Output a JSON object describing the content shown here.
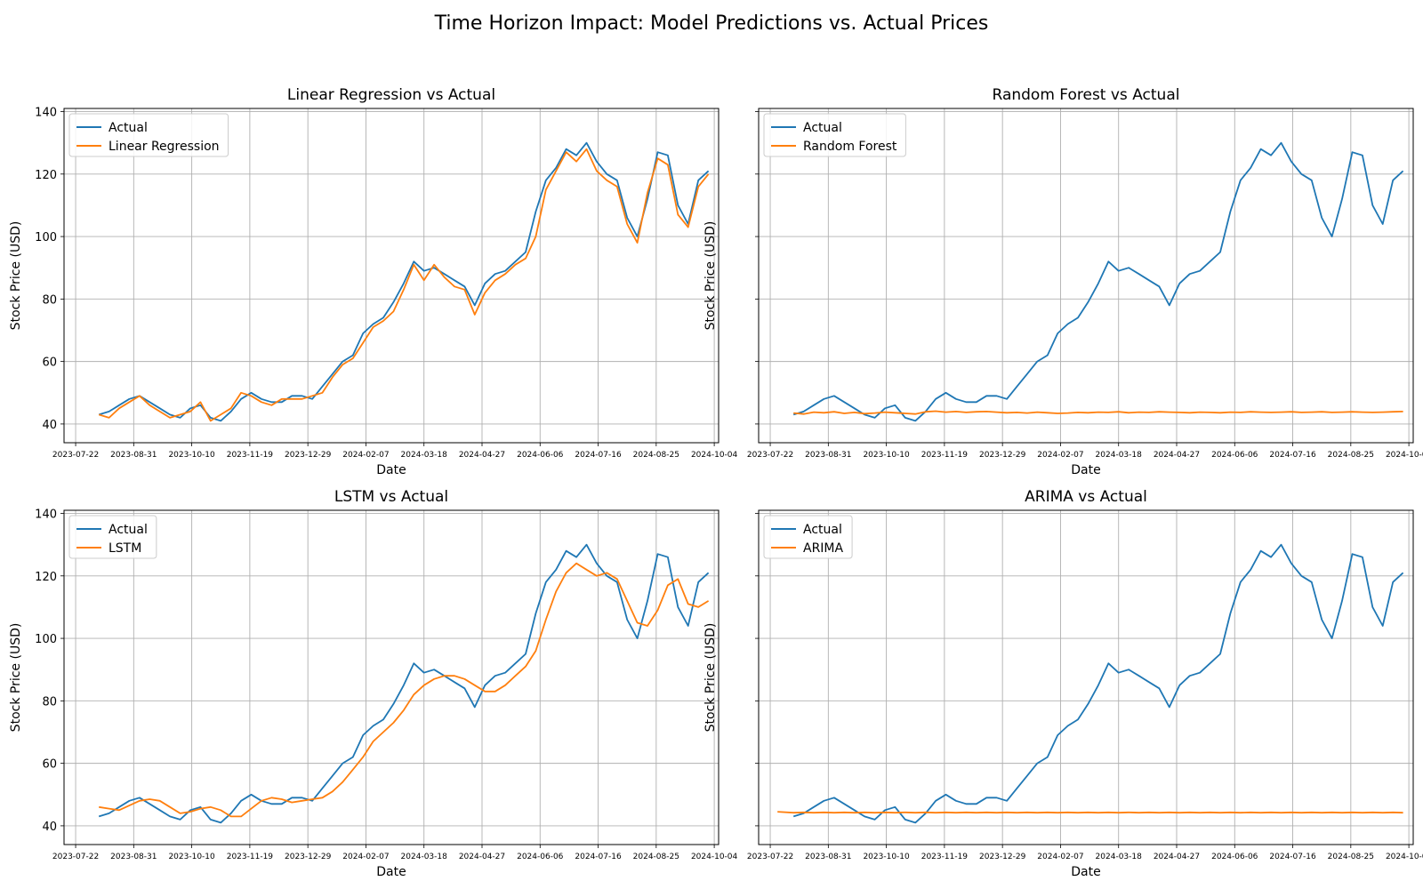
{
  "figure": {
    "title": "Time Horizon Impact: Model Predictions vs. Actual Prices"
  },
  "x_ticks": [
    "2023-07-22",
    "2023-08-31",
    "2023-10-10",
    "2023-11-19",
    "2023-12-29",
    "2024-02-07",
    "2024-03-18",
    "2024-04-27",
    "2024-06-06",
    "2024-07-16",
    "2024-08-25",
    "2024-10-04"
  ],
  "colors": {
    "actual": "#1f77b4",
    "model": "#ff7f0e",
    "grid": "#b0b0b0"
  },
  "chart_data": [
    {
      "type": "line",
      "title": "Linear Regression vs Actual",
      "xlabel": "Date",
      "ylabel": "Stock Price (USD)",
      "xlim": [
        "2023-07-14",
        "2024-10-07"
      ],
      "ylim": [
        34,
        141
      ],
      "yticks": [
        40,
        60,
        80,
        100,
        120,
        140
      ],
      "grid": true,
      "legend": "upper-left",
      "x": [
        "2023-08-07",
        "2023-08-14",
        "2023-08-21",
        "2023-08-28",
        "2023-09-04",
        "2023-09-11",
        "2023-09-18",
        "2023-09-25",
        "2023-10-02",
        "2023-10-09",
        "2023-10-16",
        "2023-10-23",
        "2023-10-30",
        "2023-11-06",
        "2023-11-13",
        "2023-11-20",
        "2023-11-27",
        "2023-12-04",
        "2023-12-11",
        "2023-12-18",
        "2023-12-25",
        "2024-01-01",
        "2024-01-08",
        "2024-01-15",
        "2024-01-22",
        "2024-01-29",
        "2024-02-05",
        "2024-02-12",
        "2024-02-19",
        "2024-02-26",
        "2024-03-04",
        "2024-03-11",
        "2024-03-18",
        "2024-03-25",
        "2024-04-01",
        "2024-04-08",
        "2024-04-15",
        "2024-04-22",
        "2024-04-29",
        "2024-05-06",
        "2024-05-13",
        "2024-05-20",
        "2024-05-27",
        "2024-06-03",
        "2024-06-10",
        "2024-06-17",
        "2024-06-24",
        "2024-07-01",
        "2024-07-08",
        "2024-07-15",
        "2024-07-22",
        "2024-07-29",
        "2024-08-05",
        "2024-08-12",
        "2024-08-19",
        "2024-08-26",
        "2024-09-02",
        "2024-09-09",
        "2024-09-16",
        "2024-09-23",
        "2024-09-30"
      ],
      "series": [
        {
          "name": "Actual",
          "values": [
            43,
            44,
            46,
            48,
            49,
            47,
            45,
            43,
            42,
            45,
            46,
            42,
            41,
            44,
            48,
            50,
            48,
            47,
            47,
            49,
            49,
            48,
            52,
            56,
            60,
            62,
            69,
            72,
            74,
            79,
            85,
            92,
            89,
            90,
            88,
            86,
            84,
            78,
            85,
            88,
            89,
            92,
            95,
            108,
            118,
            122,
            128,
            126,
            130,
            124,
            120,
            118,
            106,
            100,
            112,
            127,
            126,
            110,
            104,
            118,
            121
          ]
        },
        {
          "name": "Linear Regression",
          "values": [
            43,
            42,
            45,
            47,
            49,
            46,
            44,
            42,
            43,
            44,
            47,
            41,
            43,
            45,
            50,
            49,
            47,
            46,
            48,
            48,
            48,
            49,
            50,
            55,
            59,
            61,
            66,
            71,
            73,
            76,
            83,
            91,
            86,
            91,
            87,
            84,
            83,
            75,
            82,
            86,
            88,
            91,
            93,
            100,
            115,
            121,
            127,
            124,
            128,
            121,
            118,
            116,
            104,
            98,
            114,
            125,
            123,
            107,
            103,
            116,
            120
          ]
        }
      ]
    },
    {
      "type": "line",
      "title": "Random Forest vs Actual",
      "xlabel": "Date",
      "ylabel": "Stock Price (USD)",
      "xlim": [
        "2023-07-14",
        "2024-10-07"
      ],
      "ylim": [
        34,
        141
      ],
      "yticks": [
        40,
        60,
        80,
        100,
        120,
        140
      ],
      "grid": true,
      "legend": "upper-left",
      "x": [
        "2023-08-07",
        "2023-08-14",
        "2023-08-21",
        "2023-08-28",
        "2023-09-04",
        "2023-09-11",
        "2023-09-18",
        "2023-09-25",
        "2023-10-02",
        "2023-10-09",
        "2023-10-16",
        "2023-10-23",
        "2023-10-30",
        "2023-11-06",
        "2023-11-13",
        "2023-11-20",
        "2023-11-27",
        "2023-12-04",
        "2023-12-11",
        "2023-12-18",
        "2023-12-25",
        "2024-01-01",
        "2024-01-08",
        "2024-01-15",
        "2024-01-22",
        "2024-01-29",
        "2024-02-05",
        "2024-02-12",
        "2024-02-19",
        "2024-02-26",
        "2024-03-04",
        "2024-03-11",
        "2024-03-18",
        "2024-03-25",
        "2024-04-01",
        "2024-04-08",
        "2024-04-15",
        "2024-04-22",
        "2024-04-29",
        "2024-05-06",
        "2024-05-13",
        "2024-05-20",
        "2024-05-27",
        "2024-06-03",
        "2024-06-10",
        "2024-06-17",
        "2024-06-24",
        "2024-07-01",
        "2024-07-08",
        "2024-07-15",
        "2024-07-22",
        "2024-07-29",
        "2024-08-05",
        "2024-08-12",
        "2024-08-19",
        "2024-08-26",
        "2024-09-02",
        "2024-09-09",
        "2024-09-16",
        "2024-09-23",
        "2024-09-30"
      ],
      "series": [
        {
          "name": "Actual",
          "values": [
            43,
            44,
            46,
            48,
            49,
            47,
            45,
            43,
            42,
            45,
            46,
            42,
            41,
            44,
            48,
            50,
            48,
            47,
            47,
            49,
            49,
            48,
            52,
            56,
            60,
            62,
            69,
            72,
            74,
            79,
            85,
            92,
            89,
            90,
            88,
            86,
            84,
            78,
            85,
            88,
            89,
            92,
            95,
            108,
            118,
            122,
            128,
            126,
            130,
            124,
            120,
            118,
            106,
            100,
            112,
            127,
            126,
            110,
            104,
            118,
            121
          ]
        },
        {
          "name": "Random Forest",
          "values": [
            43.5,
            43.2,
            43.8,
            43.6,
            43.9,
            43.4,
            43.7,
            43.3,
            43.5,
            43.8,
            43.6,
            43.4,
            43.2,
            43.9,
            44.1,
            43.8,
            44.0,
            43.7,
            43.9,
            44.0,
            43.8,
            43.6,
            43.7,
            43.5,
            43.8,
            43.6,
            43.4,
            43.5,
            43.7,
            43.6,
            43.8,
            43.7,
            43.9,
            43.6,
            43.8,
            43.7,
            43.9,
            43.8,
            43.7,
            43.6,
            43.8,
            43.7,
            43.6,
            43.8,
            43.7,
            43.9,
            43.8,
            43.7,
            43.8,
            43.9,
            43.7,
            43.8,
            43.9,
            43.7,
            43.8,
            43.9,
            43.8,
            43.7,
            43.8,
            43.9,
            44.0
          ]
        }
      ]
    },
    {
      "type": "line",
      "title": "LSTM vs Actual",
      "xlabel": "Date",
      "ylabel": "Stock Price (USD)",
      "xlim": [
        "2023-07-14",
        "2024-10-07"
      ],
      "ylim": [
        34,
        141
      ],
      "yticks": [
        40,
        60,
        80,
        100,
        120,
        140
      ],
      "grid": true,
      "legend": "upper-left",
      "x": [
        "2023-08-07",
        "2023-08-14",
        "2023-08-21",
        "2023-08-28",
        "2023-09-04",
        "2023-09-11",
        "2023-09-18",
        "2023-09-25",
        "2023-10-02",
        "2023-10-09",
        "2023-10-16",
        "2023-10-23",
        "2023-10-30",
        "2023-11-06",
        "2023-11-13",
        "2023-11-20",
        "2023-11-27",
        "2023-12-04",
        "2023-12-11",
        "2023-12-18",
        "2023-12-25",
        "2024-01-01",
        "2024-01-08",
        "2024-01-15",
        "2024-01-22",
        "2024-01-29",
        "2024-02-05",
        "2024-02-12",
        "2024-02-19",
        "2024-02-26",
        "2024-03-04",
        "2024-03-11",
        "2024-03-18",
        "2024-03-25",
        "2024-04-01",
        "2024-04-08",
        "2024-04-15",
        "2024-04-22",
        "2024-04-29",
        "2024-05-06",
        "2024-05-13",
        "2024-05-20",
        "2024-05-27",
        "2024-06-03",
        "2024-06-10",
        "2024-06-17",
        "2024-06-24",
        "2024-07-01",
        "2024-07-08",
        "2024-07-15",
        "2024-07-22",
        "2024-07-29",
        "2024-08-05",
        "2024-08-12",
        "2024-08-19",
        "2024-08-26",
        "2024-09-02",
        "2024-09-09",
        "2024-09-16",
        "2024-09-23",
        "2024-09-30"
      ],
      "series": [
        {
          "name": "Actual",
          "values": [
            43,
            44,
            46,
            48,
            49,
            47,
            45,
            43,
            42,
            45,
            46,
            42,
            41,
            44,
            48,
            50,
            48,
            47,
            47,
            49,
            49,
            48,
            52,
            56,
            60,
            62,
            69,
            72,
            74,
            79,
            85,
            92,
            89,
            90,
            88,
            86,
            84,
            78,
            85,
            88,
            89,
            92,
            95,
            108,
            118,
            122,
            128,
            126,
            130,
            124,
            120,
            118,
            106,
            100,
            112,
            127,
            126,
            110,
            104,
            118,
            121
          ]
        },
        {
          "name": "LSTM",
          "values": [
            46,
            45.5,
            45,
            46.5,
            48,
            48.5,
            48,
            46,
            44,
            44.5,
            45.5,
            46,
            45,
            43,
            43,
            45.5,
            48,
            49,
            48.5,
            47.5,
            48,
            48.5,
            49,
            51,
            54,
            58,
            62,
            67,
            70,
            73,
            77,
            82,
            85,
            87,
            88,
            88,
            87,
            85,
            83,
            83,
            85,
            88,
            91,
            96,
            106,
            115,
            121,
            124,
            122,
            120,
            121,
            119,
            112,
            105,
            104,
            109,
            117,
            119,
            111,
            110,
            112
          ]
        }
      ]
    },
    {
      "type": "line",
      "title": "ARIMA vs Actual",
      "xlabel": "Date",
      "ylabel": "Stock Price (USD)",
      "xlim": [
        "2023-07-14",
        "2024-10-07"
      ],
      "ylim": [
        34,
        141
      ],
      "yticks": [
        40,
        60,
        80,
        100,
        120,
        140
      ],
      "grid": true,
      "legend": "upper-left",
      "x": [
        "2023-07-27",
        "2023-08-07",
        "2023-08-14",
        "2023-08-21",
        "2023-08-28",
        "2023-09-04",
        "2023-09-11",
        "2023-09-18",
        "2023-09-25",
        "2023-10-02",
        "2023-10-09",
        "2023-10-16",
        "2023-10-23",
        "2023-10-30",
        "2023-11-06",
        "2023-11-13",
        "2023-11-20",
        "2023-11-27",
        "2023-12-04",
        "2023-12-11",
        "2023-12-18",
        "2023-12-25",
        "2024-01-01",
        "2024-01-08",
        "2024-01-15",
        "2024-01-22",
        "2024-01-29",
        "2024-02-05",
        "2024-02-12",
        "2024-02-19",
        "2024-02-26",
        "2024-03-04",
        "2024-03-11",
        "2024-03-18",
        "2024-03-25",
        "2024-04-01",
        "2024-04-08",
        "2024-04-15",
        "2024-04-22",
        "2024-04-29",
        "2024-05-06",
        "2024-05-13",
        "2024-05-20",
        "2024-05-27",
        "2024-06-03",
        "2024-06-10",
        "2024-06-17",
        "2024-06-24",
        "2024-07-01",
        "2024-07-08",
        "2024-07-15",
        "2024-07-22",
        "2024-07-29",
        "2024-08-05",
        "2024-08-12",
        "2024-08-19",
        "2024-08-26",
        "2024-09-02",
        "2024-09-09",
        "2024-09-16",
        "2024-09-23",
        "2024-09-30"
      ],
      "series": [
        {
          "name": "Actual",
          "values": [
            null,
            43,
            44,
            46,
            48,
            49,
            47,
            45,
            43,
            42,
            45,
            46,
            42,
            41,
            44,
            48,
            50,
            48,
            47,
            47,
            49,
            49,
            48,
            52,
            56,
            60,
            62,
            69,
            72,
            74,
            79,
            85,
            92,
            89,
            90,
            88,
            86,
            84,
            78,
            85,
            88,
            89,
            92,
            95,
            108,
            118,
            122,
            128,
            126,
            130,
            124,
            120,
            118,
            106,
            100,
            112,
            127,
            126,
            110,
            104,
            118,
            121
          ]
        },
        {
          "name": "ARIMA",
          "values": [
            44.5,
            44.2,
            44.3,
            44.2,
            44.3,
            44.2,
            44.3,
            44.2,
            44.3,
            44.2,
            44.3,
            44.2,
            44.3,
            44.2,
            44.3,
            44.2,
            44.3,
            44.2,
            44.3,
            44.2,
            44.3,
            44.2,
            44.3,
            44.2,
            44.3,
            44.2,
            44.3,
            44.2,
            44.3,
            44.2,
            44.3,
            44.2,
            44.3,
            44.2,
            44.3,
            44.2,
            44.3,
            44.2,
            44.3,
            44.2,
            44.3,
            44.2,
            44.3,
            44.2,
            44.3,
            44.2,
            44.3,
            44.2,
            44.3,
            44.2,
            44.3,
            44.2,
            44.3,
            44.2,
            44.3,
            44.2,
            44.3,
            44.2,
            44.3,
            44.2,
            44.3,
            44.2
          ]
        }
      ]
    }
  ]
}
